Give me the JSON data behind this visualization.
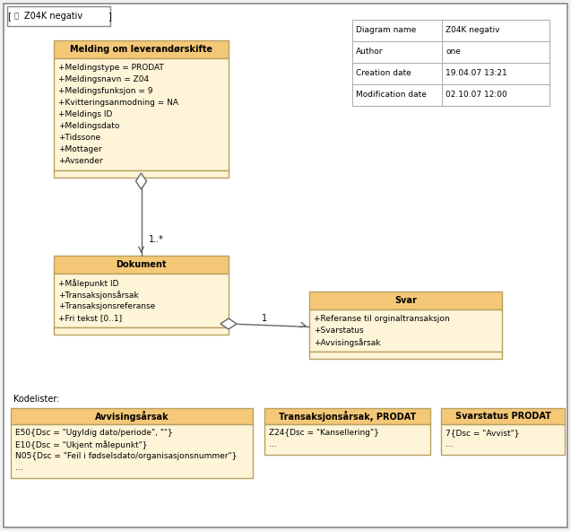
{
  "diagram_info": {
    "rows": [
      [
        "Diagram name",
        "Z04K negativ"
      ],
      [
        "Author",
        "one"
      ],
      [
        "Creation date",
        "19.04.07 13:21"
      ],
      [
        "Modification date",
        "02.10.07 12:00"
      ]
    ]
  },
  "class_melding": {
    "title": "Melding om leverandørskifte",
    "attrs": [
      "+Meldingstype = PRODAT",
      "+Meldingsnavn = Z04",
      "+Meldingsfunksjon = 9",
      "+Kvitteringsanmodning = NA",
      "+Meldings ID",
      "+Meldingsdato",
      "+Tidssone",
      "+Mottager",
      "+Avsender"
    ]
  },
  "class_dokument": {
    "title": "Dokument",
    "attrs": [
      "+Målepunkt ID",
      "+Transaksjonsårsak",
      "+Transaksjonsreferanse",
      "+Fri tekst [0..1]"
    ]
  },
  "class_svar": {
    "title": "Svar",
    "attrs": [
      "+Referanse til orginaltransaksjon",
      "+Svarstatus",
      "+Avvisingsårsak"
    ]
  },
  "code_avvising": {
    "title": "Avvisingsårsak",
    "attrs": [
      "E50{Dsc = \"Ugyldig dato/periode\", \"\"}",
      "E10{Dsc = \"Ukjent målepunkt\"}",
      "N05{Dsc = \"Feil i fødselsdato/organisasjonsnummer\"}",
      "..."
    ]
  },
  "code_transaksjon": {
    "title": "Transaksjonsårsak, PRODAT",
    "attrs": [
      "Z24{Dsc = \"Kansellering\"}",
      "..."
    ]
  },
  "code_svarstatus": {
    "title": "Svarstatus PRODAT",
    "attrs": [
      "7{Dsc = \"Avvist\"}",
      "..."
    ]
  },
  "box_fill": "#fde8b0",
  "box_attr_fill": "#fef5d8",
  "box_edge": "#b8a060",
  "header_fill": "#f5c878",
  "info_edge": "#aaaaaa",
  "line_color": "#666666",
  "text_color": "#000000",
  "tab_label": "[ 品 Z04K negativ ]"
}
